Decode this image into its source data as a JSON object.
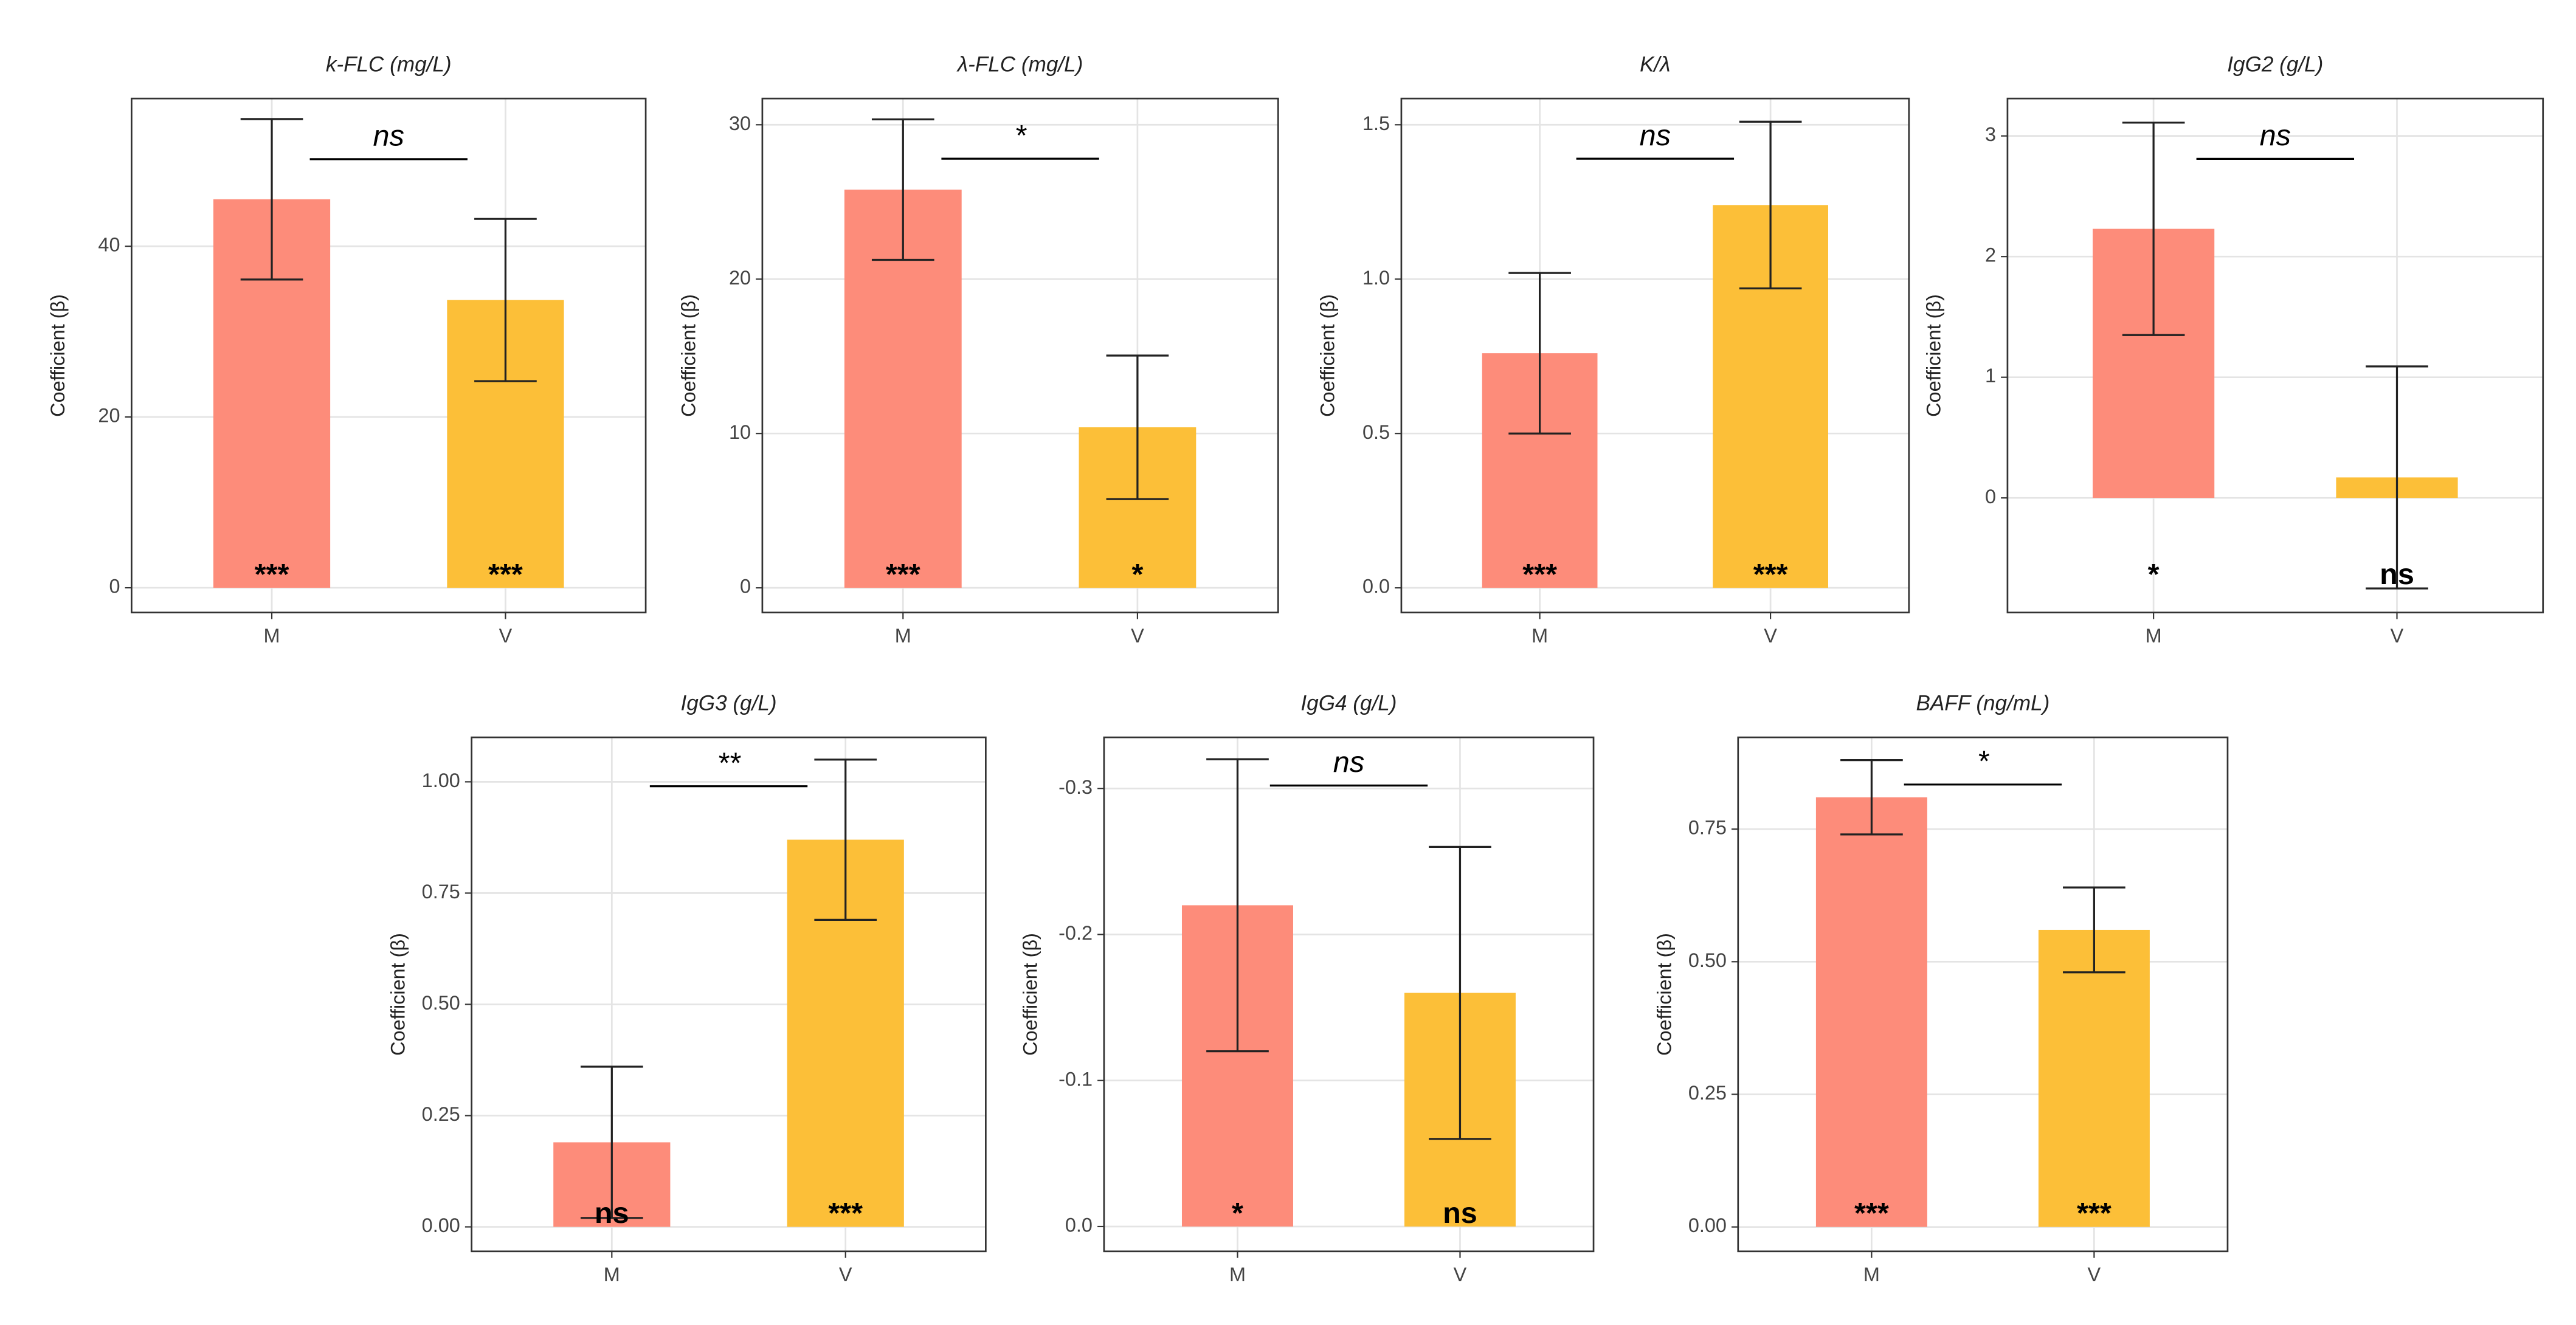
{
  "chart_data": [
    {
      "type": "bar",
      "title": "k-FLC (mg/L)",
      "ylabel": "Coefficient (β)",
      "categories": [
        "M",
        "V"
      ],
      "values": [
        45.5,
        33.7
      ],
      "errors": [
        9.4,
        9.5
      ],
      "colors": [
        "#fd8c7a",
        "#fcbf38"
      ],
      "sig_labels": [
        "***",
        "***"
      ],
      "bracket_label": "ns",
      "bracket_y": 50.2,
      "ylim": [
        -2.9,
        57.3
      ],
      "yticks": [
        0,
        20,
        40
      ],
      "grid": true
    },
    {
      "type": "bar",
      "title": "λ-FLC (mg/L)",
      "ylabel": "Coefficient (β)",
      "categories": [
        "M",
        "V"
      ],
      "values": [
        25.8,
        10.4
      ],
      "errors": [
        4.55,
        4.65
      ],
      "colors": [
        "#fd8c7a",
        "#fcbf38"
      ],
      "sig_labels": [
        "***",
        "*"
      ],
      "bracket_label": "*",
      "bracket_y": 27.8,
      "ylim": [
        -1.6,
        31.7
      ],
      "yticks": [
        0,
        10,
        20,
        30
      ],
      "grid": true
    },
    {
      "type": "bar",
      "title": "K/λ",
      "ylabel": "Coefficient (β)",
      "categories": [
        "M",
        "V"
      ],
      "values": [
        0.76,
        1.24
      ],
      "errors": [
        0.26,
        0.27
      ],
      "colors": [
        "#fd8c7a",
        "#fcbf38"
      ],
      "sig_labels": [
        "***",
        "***"
      ],
      "bracket_label": "ns",
      "bracket_y": 1.39,
      "ylim": [
        -0.08,
        1.585
      ],
      "yticks": [
        {
          "value": 0,
          "label": "0.0"
        },
        0.5,
        {
          "value": 1,
          "label": "1.0"
        },
        1.5
      ],
      "grid": true
    },
    {
      "type": "bar",
      "title": "IgG2 (g/L)",
      "ylabel": "Coefficient (β)",
      "categories": [
        "M",
        "V"
      ],
      "values": [
        2.23,
        0.17
      ],
      "errors": [
        0.88,
        0.92
      ],
      "colors": [
        "#fd8c7a",
        "#fcbf38"
      ],
      "sig_labels": [
        "*",
        "ns"
      ],
      "bracket_label": "ns",
      "bracket_y": 2.81,
      "ylim": [
        -0.95,
        3.31
      ],
      "yticks": [
        0,
        1,
        2,
        3
      ],
      "grid": true
    },
    {
      "type": "bar",
      "title": "IgG3 (g/L)",
      "ylabel": "Coefficient (β)",
      "categories": [
        "M",
        "V"
      ],
      "values": [
        0.19,
        0.87
      ],
      "errors": [
        0.17,
        0.18
      ],
      "colors": [
        "#fd8c7a",
        "#fcbf38"
      ],
      "sig_labels": [
        "ns",
        "***"
      ],
      "bracket_label": "**",
      "bracket_y": 0.99,
      "ylim": [
        -0.055,
        1.1
      ],
      "yticks": [
        {
          "value": 0,
          "label": "0.00"
        },
        0.25,
        {
          "value": 0.5,
          "label": "0.50"
        },
        0.75,
        {
          "value": 1,
          "label": "1.00"
        }
      ],
      "grid": true
    },
    {
      "type": "bar",
      "title": "IgG4 (g/L)",
      "ylabel": "Coefficient (β)",
      "categories": [
        "M",
        "V"
      ],
      "values": [
        -0.22,
        -0.16
      ],
      "errors": [
        0.1,
        0.1
      ],
      "colors": [
        "#fd8c7a",
        "#fcbf38"
      ],
      "sig_labels": [
        "*",
        "ns"
      ],
      "bracket_label": "ns",
      "bracket_y": -0.302,
      "ylim": [
        0.017,
        -0.335
      ],
      "yticks": [
        {
          "value": 0,
          "label": "0.0"
        },
        -0.1,
        -0.2,
        -0.3
      ],
      "grid": true
    },
    {
      "type": "bar",
      "title": "BAFF (ng/mL)",
      "ylabel": "Coefficient (β)",
      "categories": [
        "M",
        "V"
      ],
      "values": [
        0.81,
        0.56
      ],
      "errors": [
        0.07,
        0.08
      ],
      "colors": [
        "#fd8c7a",
        "#fcbf38"
      ],
      "sig_labels": [
        "***",
        "***"
      ],
      "bracket_label": "*",
      "bracket_y": 0.834,
      "ylim": [
        -0.046,
        0.923
      ],
      "yticks": [
        {
          "value": 0,
          "label": "0.00"
        },
        0.25,
        {
          "value": 0.5,
          "label": "0.50"
        },
        0.75
      ],
      "grid": true
    }
  ]
}
